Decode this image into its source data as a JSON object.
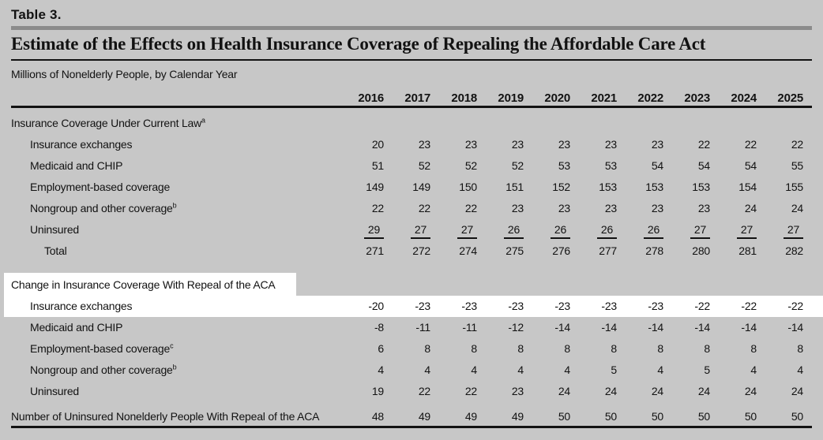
{
  "page": {
    "table_label": "Table 3.",
    "title": "Estimate of the Effects on Health Insurance Coverage of Repealing the Affordable Care Act",
    "subtitle": "Millions of Nonelderly People, by Calendar Year"
  },
  "colors": {
    "page_background": "#c7c7c7",
    "selection_highlight": "#ffffff",
    "divider_bar": "#8b8b8b",
    "rule": "#121212",
    "text": "#121212"
  },
  "table": {
    "years": [
      "2016",
      "2017",
      "2018",
      "2019",
      "2020",
      "2021",
      "2022",
      "2023",
      "2024",
      "2025"
    ],
    "sections": [
      {
        "header": "Insurance Coverage Under Current Law",
        "header_sup": "a",
        "header_highlight": false,
        "rows": [
          {
            "label": "Insurance exchanges",
            "sup": "",
            "values": [
              "20",
              "23",
              "23",
              "23",
              "23",
              "23",
              "23",
              "22",
              "22",
              "22"
            ],
            "sum_underline": false,
            "is_total": false,
            "highlight": false
          },
          {
            "label": "Medicaid and CHIP",
            "sup": "",
            "values": [
              "51",
              "52",
              "52",
              "52",
              "53",
              "53",
              "54",
              "54",
              "54",
              "55"
            ],
            "sum_underline": false,
            "is_total": false,
            "highlight": false
          },
          {
            "label": "Employment-based coverage",
            "sup": "",
            "values": [
              "149",
              "149",
              "150",
              "151",
              "152",
              "153",
              "153",
              "153",
              "154",
              "155"
            ],
            "sum_underline": false,
            "is_total": false,
            "highlight": false
          },
          {
            "label": "Nongroup and other coverage",
            "sup": "b",
            "values": [
              "22",
              "22",
              "22",
              "23",
              "23",
              "23",
              "23",
              "23",
              "24",
              "24"
            ],
            "sum_underline": false,
            "is_total": false,
            "highlight": false
          },
          {
            "label": "Uninsured",
            "sup": "",
            "values": [
              "29",
              "27",
              "27",
              "26",
              "26",
              "26",
              "26",
              "27",
              "27",
              "27"
            ],
            "sum_underline": true,
            "is_total": false,
            "highlight": false
          },
          {
            "label": "Total",
            "sup": "",
            "values": [
              "271",
              "272",
              "274",
              "275",
              "276",
              "277",
              "278",
              "280",
              "281",
              "282"
            ],
            "sum_underline": false,
            "is_total": true,
            "highlight": false
          }
        ]
      },
      {
        "header": "Change in Insurance Coverage With Repeal of the ACA",
        "header_sup": "",
        "header_highlight": true,
        "rows": [
          {
            "label": "Insurance exchanges",
            "sup": "",
            "values": [
              "-20",
              "-23",
              "-23",
              "-23",
              "-23",
              "-23",
              "-23",
              "-22",
              "-22",
              "-22"
            ],
            "sum_underline": false,
            "is_total": false,
            "highlight": true
          },
          {
            "label": "Medicaid and CHIP",
            "sup": "",
            "values": [
              "-8",
              "-11",
              "-11",
              "-12",
              "-14",
              "-14",
              "-14",
              "-14",
              "-14",
              "-14"
            ],
            "sum_underline": false,
            "is_total": false,
            "highlight": false
          },
          {
            "label": "Employment-based coverage",
            "sup": "c",
            "values": [
              "6",
              "8",
              "8",
              "8",
              "8",
              "8",
              "8",
              "8",
              "8",
              "8"
            ],
            "sum_underline": false,
            "is_total": false,
            "highlight": false
          },
          {
            "label": "Nongroup and other coverage",
            "sup": "b",
            "values": [
              "4",
              "4",
              "4",
              "4",
              "4",
              "5",
              "4",
              "5",
              "4",
              "4"
            ],
            "sum_underline": false,
            "is_total": false,
            "highlight": false
          },
          {
            "label": "Uninsured",
            "sup": "",
            "values": [
              "19",
              "22",
              "22",
              "23",
              "24",
              "24",
              "24",
              "24",
              "24",
              "24"
            ],
            "sum_underline": false,
            "is_total": false,
            "highlight": false
          }
        ]
      }
    ],
    "footer_row": {
      "label": "Number of Uninsured Nonelderly People With Repeal of the ACA",
      "values": [
        "48",
        "49",
        "49",
        "49",
        "50",
        "50",
        "50",
        "50",
        "50",
        "50"
      ]
    }
  }
}
